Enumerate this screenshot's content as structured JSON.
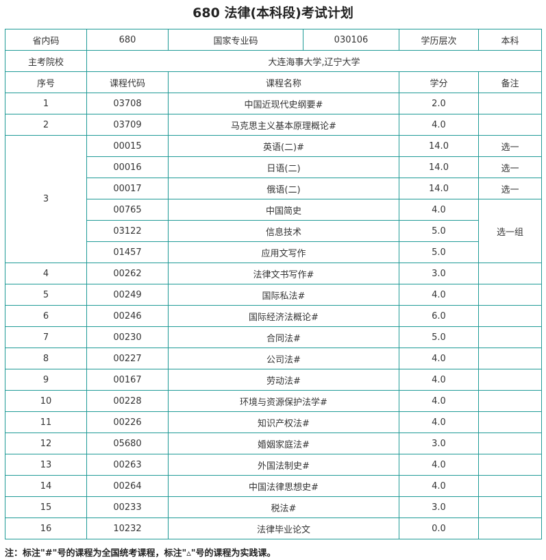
{
  "title": "680 法律(本科段)考试计划",
  "info": {
    "province_code_label": "省内码",
    "province_code": "680",
    "national_code_label": "国家专业码",
    "national_code": "030106",
    "level_label": "学历层次",
    "level": "本科",
    "schools_label": "主考院校",
    "schools": "大连海事大学,辽宁大学"
  },
  "headers": {
    "seq": "序号",
    "code": "课程代码",
    "name": "课程名称",
    "credit": "学分",
    "remark": "备注"
  },
  "courses": [
    {
      "seq": "1",
      "code": "03708",
      "name": "中国近现代史纲要#",
      "credit": "2.0",
      "remark": ""
    },
    {
      "seq": "2",
      "code": "03709",
      "name": "马克思主义基本原理概论#",
      "credit": "4.0",
      "remark": ""
    },
    {
      "seq": "3",
      "code": "00015",
      "name": "英语(二)#",
      "credit": "14.0",
      "remark": "选一"
    },
    {
      "seq": "3",
      "code": "00016",
      "name": "日语(二)",
      "credit": "14.0",
      "remark": "选一"
    },
    {
      "seq": "3",
      "code": "00017",
      "name": "俄语(二)",
      "credit": "14.0",
      "remark": "选一"
    },
    {
      "seq": "3",
      "code": "00765",
      "name": "中国简史",
      "credit": "4.0",
      "remark": "选一组"
    },
    {
      "seq": "3",
      "code": "03122",
      "name": "信息技术",
      "credit": "5.0",
      "remark": "选一组"
    },
    {
      "seq": "3",
      "code": "01457",
      "name": "应用文写作",
      "credit": "5.0",
      "remark": "选一组"
    },
    {
      "seq": "4",
      "code": "00262",
      "name": "法律文书写作#",
      "credit": "3.0",
      "remark": ""
    },
    {
      "seq": "5",
      "code": "00249",
      "name": "国际私法#",
      "credit": "4.0",
      "remark": ""
    },
    {
      "seq": "6",
      "code": "00246",
      "name": "国际经济法概论#",
      "credit": "6.0",
      "remark": ""
    },
    {
      "seq": "7",
      "code": "00230",
      "name": "合同法#",
      "credit": "5.0",
      "remark": ""
    },
    {
      "seq": "8",
      "code": "00227",
      "name": "公司法#",
      "credit": "4.0",
      "remark": ""
    },
    {
      "seq": "9",
      "code": "00167",
      "name": "劳动法#",
      "credit": "4.0",
      "remark": ""
    },
    {
      "seq": "10",
      "code": "00228",
      "name": "环境与资源保护法学#",
      "credit": "4.0",
      "remark": ""
    },
    {
      "seq": "11",
      "code": "00226",
      "name": "知识产权法#",
      "credit": "4.0",
      "remark": ""
    },
    {
      "seq": "12",
      "code": "05680",
      "name": "婚姻家庭法#",
      "credit": "3.0",
      "remark": ""
    },
    {
      "seq": "13",
      "code": "00263",
      "name": "外国法制史#",
      "credit": "4.0",
      "remark": ""
    },
    {
      "seq": "14",
      "code": "00264",
      "name": "中国法律思想史#",
      "credit": "4.0",
      "remark": ""
    },
    {
      "seq": "15",
      "code": "00233",
      "name": "税法#",
      "credit": "3.0",
      "remark": ""
    },
    {
      "seq": "16",
      "code": "10232",
      "name": "法律毕业论文",
      "credit": "0.0",
      "remark": ""
    }
  ],
  "note": "注：标注\"#\"号的课程为全国统考课程，标注\"▵\"号的课程为实践课。",
  "colors": {
    "border": "#1e9a96"
  }
}
